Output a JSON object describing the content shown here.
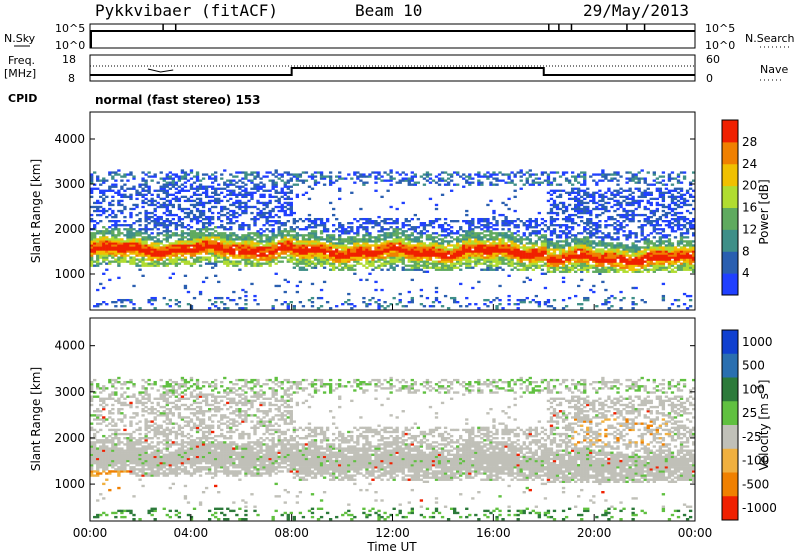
{
  "header": {
    "radar": "Pykkvibaer (fitACF)",
    "beam": "Beam 10",
    "date": "29/May/2013"
  },
  "top_panels": {
    "nsky_label": "N.Sky",
    "nsky_ticks": [
      "10^5",
      "10^0"
    ],
    "nsearch_ticks": [
      "10^5",
      "10^0"
    ],
    "nsearch_label": "N.Search",
    "freq_label": "Freq.",
    "freq_unit": "[MHz]",
    "freq_ticks": [
      "18",
      "8"
    ],
    "nave_ticks": [
      "60",
      "0"
    ],
    "nave_label": "Nave",
    "cpid_label": "CPID",
    "cpid_text": "normal (fast stereo) 153"
  },
  "chart_data": [
    {
      "type": "heatmap",
      "title": "",
      "ylabel": "Slant Range [km]",
      "yticks": [
        "1000",
        "2000",
        "3000",
        "4000"
      ],
      "ylim": [
        200,
        4600
      ],
      "xlim_hours": [
        0,
        24
      ],
      "colorbar": {
        "label": "Power [dB]",
        "ticks": [
          "4",
          "8",
          "12",
          "16",
          "20",
          "24",
          "28"
        ],
        "colors": [
          "#2040ff",
          "#2a5fb0",
          "#3f8f88",
          "#5faa5f",
          "#b0dc30",
          "#f0c000",
          "#f08000",
          "#f02000"
        ]
      },
      "echo_band": {
        "description": "main F-region backscatter band",
        "segments": [
          {
            "t0": 0,
            "t1": 8,
            "center_km": 1550,
            "lower_km": 1150,
            "upper_km": 3000
          },
          {
            "t0": 8,
            "t1": 18,
            "center_km": 1500,
            "lower_km": 1050,
            "upper_km": 2200
          },
          {
            "t0": 18,
            "t1": 24,
            "center_km": 1350,
            "lower_km": 1000,
            "upper_km": 2900
          }
        ]
      }
    },
    {
      "type": "heatmap",
      "title": "",
      "ylabel": "Slant Range [km]",
      "yticks": [
        "1000",
        "2000",
        "3000",
        "4000"
      ],
      "ylim": [
        200,
        4600
      ],
      "xlim_hours": [
        0,
        24
      ],
      "xticks": [
        "00:00",
        "04:00",
        "08:00",
        "12:00",
        "16:00",
        "20:00",
        "00:00"
      ],
      "xlabel": "Time UT",
      "colorbar": {
        "label": "Velocity [m s-1]",
        "ticks": [
          "1000",
          "500",
          "100",
          "25",
          "-25",
          "-100",
          "-500",
          "-1000"
        ],
        "colors": [
          "#1040d0",
          "#2a6fb0",
          "#2c7a3a",
          "#60c040",
          "#c0c0b8",
          "#f0b040",
          "#f08000",
          "#f02000"
        ]
      }
    }
  ]
}
